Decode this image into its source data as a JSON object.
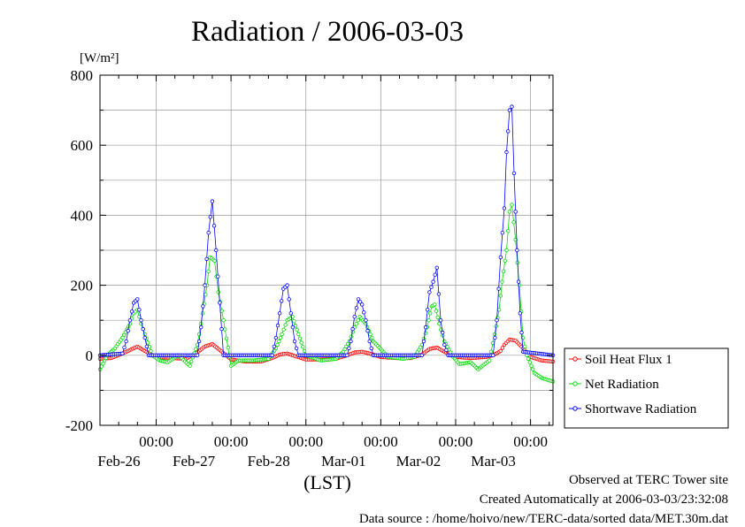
{
  "chart_data": {
    "type": "line",
    "title": "Radiation / 2006-03-03",
    "ylabel": "[W/m²]",
    "xlabel": "(LST)",
    "ylim": [
      -200,
      800
    ],
    "yticks": [
      -200,
      0,
      200,
      400,
      600,
      800
    ],
    "grid": true,
    "x_unit": "days since 2006-02-25 00:00",
    "xlim": [
      0.25,
      6.3
    ],
    "time_tick_label": "00:00",
    "date_ticks": [
      {
        "x": 1,
        "time": "00:00",
        "date": "Feb-26"
      },
      {
        "x": 2,
        "time": "00:00",
        "date": "Feb-27"
      },
      {
        "x": 3,
        "time": "00:00",
        "date": "Feb-28"
      },
      {
        "x": 4,
        "time": "00:00",
        "date": "Mar-01"
      },
      {
        "x": 5,
        "time": "00:00",
        "date": "Mar-02"
      },
      {
        "x": 6,
        "time": "00:00",
        "date": "Mar-03"
      }
    ],
    "legend_position": "right",
    "series": [
      {
        "name": "Soil Heat Flux 1",
        "color": "#ff0000",
        "x": [
          0.25,
          0.4,
          0.55,
          0.65,
          0.75,
          0.85,
          1.0,
          1.2,
          1.4,
          1.55,
          1.65,
          1.75,
          1.85,
          2.0,
          2.2,
          2.4,
          2.55,
          2.65,
          2.75,
          2.85,
          3.0,
          3.2,
          3.4,
          3.55,
          3.65,
          3.75,
          3.85,
          4.0,
          4.2,
          4.4,
          4.55,
          4.65,
          4.75,
          4.85,
          5.0,
          5.2,
          5.4,
          5.5,
          5.6,
          5.65,
          5.72,
          5.8,
          5.9,
          6.0,
          6.15,
          6.3
        ],
        "y": [
          -10,
          -8,
          5,
          15,
          25,
          12,
          -5,
          -8,
          -10,
          8,
          25,
          32,
          15,
          -12,
          -18,
          -18,
          -8,
          2,
          5,
          -2,
          -12,
          -12,
          -10,
          0,
          8,
          10,
          5,
          -5,
          -8,
          -8,
          2,
          18,
          22,
          10,
          -5,
          -8,
          -5,
          0,
          12,
          30,
          45,
          42,
          20,
          -5,
          -15,
          -18
        ]
      },
      {
        "name": "Net Radiation",
        "color": "#00dd00",
        "x": [
          0.25,
          0.35,
          0.45,
          0.55,
          0.65,
          0.7,
          0.75,
          0.8,
          0.85,
          0.95,
          1.05,
          1.15,
          1.3,
          1.45,
          1.55,
          1.62,
          1.68,
          1.72,
          1.78,
          1.83,
          1.9,
          2.0,
          2.1,
          2.3,
          2.5,
          2.6,
          2.68,
          2.75,
          2.82,
          2.9,
          3.0,
          3.2,
          3.4,
          3.5,
          3.58,
          3.65,
          3.72,
          3.8,
          3.9,
          4.1,
          4.3,
          4.45,
          4.55,
          4.62,
          4.68,
          4.72,
          4.78,
          4.85,
          4.95,
          5.05,
          5.2,
          5.3,
          5.45,
          5.52,
          5.58,
          5.62,
          5.68,
          5.72,
          5.75,
          5.8,
          5.85,
          5.9,
          5.95,
          6.05,
          6.15,
          6.3
        ],
        "y": [
          -40,
          0,
          20,
          50,
          90,
          120,
          130,
          90,
          60,
          0,
          -15,
          -20,
          0,
          -30,
          30,
          120,
          200,
          280,
          270,
          180,
          100,
          -30,
          -15,
          -15,
          -10,
          20,
          60,
          100,
          110,
          60,
          0,
          -15,
          -10,
          10,
          40,
          80,
          110,
          90,
          40,
          -5,
          -10,
          -5,
          30,
          80,
          140,
          145,
          90,
          40,
          0,
          -25,
          -20,
          -40,
          -15,
          60,
          130,
          210,
          300,
          410,
          430,
          330,
          200,
          50,
          0,
          -50,
          -65,
          -75
        ]
      },
      {
        "name": "Shortwave Radiation",
        "color": "#0000ff",
        "x": [
          0.25,
          0.55,
          0.6,
          0.65,
          0.7,
          0.75,
          0.8,
          0.85,
          0.9,
          1.55,
          1.6,
          1.65,
          1.7,
          1.75,
          1.8,
          1.85,
          1.9,
          2.55,
          2.6,
          2.65,
          2.7,
          2.75,
          2.8,
          2.85,
          2.9,
          3.55,
          3.6,
          3.65,
          3.7,
          3.75,
          3.8,
          3.85,
          3.9,
          4.55,
          4.6,
          4.65,
          4.7,
          4.75,
          4.8,
          4.85,
          4.9,
          5.5,
          5.55,
          5.6,
          5.65,
          5.68,
          5.72,
          5.75,
          5.78,
          5.82,
          5.86,
          5.9,
          6.3
        ],
        "y": [
          0,
          5,
          40,
          100,
          150,
          160,
          100,
          50,
          0,
          0,
          80,
          200,
          350,
          440,
          300,
          150,
          0,
          0,
          50,
          120,
          190,
          200,
          120,
          40,
          0,
          0,
          40,
          110,
          160,
          145,
          100,
          40,
          0,
          0,
          80,
          180,
          210,
          250,
          100,
          30,
          0,
          0,
          100,
          280,
          420,
          580,
          700,
          710,
          520,
          300,
          120,
          10,
          0
        ]
      }
    ]
  },
  "footer": {
    "line1": "Observed at TERC Tower site",
    "line2": "Created Automatically at 2006-03-03/23:32:08",
    "line3": "Data source : /home/hoivo/new/TERC-data/sorted  data/MET.30m.dat"
  }
}
